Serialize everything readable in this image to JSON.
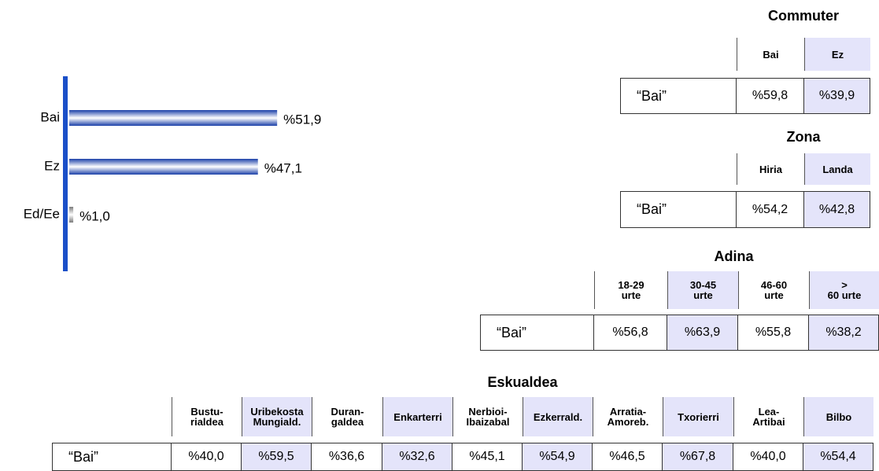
{
  "chart_data": {
    "type": "hbar",
    "categories": [
      "Bai",
      "Ez",
      "Ed/Ee"
    ],
    "values": [
      51.9,
      47.1,
      1.0
    ],
    "value_labels": [
      "%51,9",
      "%47,1",
      "%1,0"
    ],
    "colors": [
      "#1a3fa8",
      "#1a3fa8",
      "#7a7a7a"
    ],
    "axis_color": "#1a4fc8"
  },
  "tables": [
    {
      "title": "Commuter",
      "columns": [
        "Bai",
        "Ez"
      ],
      "row": {
        "label": "“Bai”",
        "values": [
          "%59,8",
          "%39,9"
        ]
      }
    },
    {
      "title": "Zona",
      "columns": [
        "Hiria",
        "Landa"
      ],
      "row": {
        "label": "“Bai”",
        "values": [
          "%54,2",
          "%42,8"
        ]
      }
    },
    {
      "title": "Adina",
      "columns": [
        "18-29\nurte",
        "30-45\nurte",
        "46-60\nurte",
        ">\n60 urte"
      ],
      "row": {
        "label": "“Bai”",
        "values": [
          "%56,8",
          "%63,9",
          "%55,8",
          "%38,2"
        ]
      }
    },
    {
      "title": "Eskualdea",
      "columns": [
        "Bustu-\nrialdea",
        "Uribekosta\nMungiald.",
        "Duran-\ngaldea",
        "Enkarterri",
        "Nerbioi-\nIbaizabal",
        "Ezkerrald.",
        "Arratia-\nAmoreb.",
        "Txorierri",
        "Lea-\nArtibai",
        "Bilbo"
      ],
      "row": {
        "label": "“Bai”",
        "values": [
          "%40,0",
          "%59,5",
          "%36,6",
          "%32,6",
          "%45,1",
          "%54,9",
          "%46,5",
          "%67,8",
          "%40,0",
          "%54,4"
        ]
      }
    }
  ]
}
